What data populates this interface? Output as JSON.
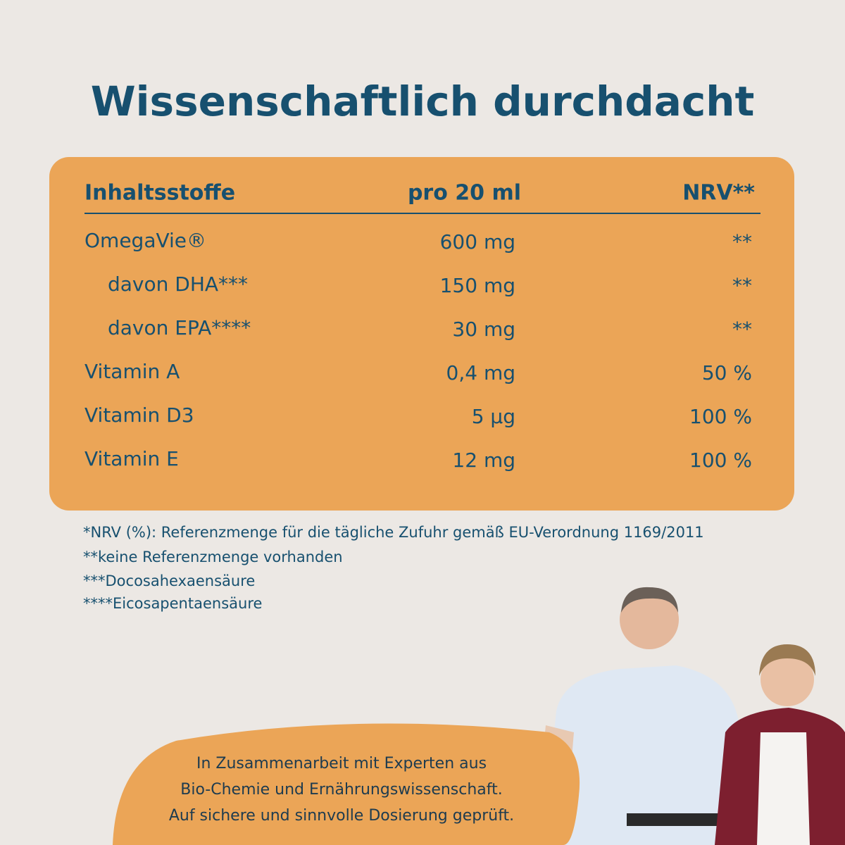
{
  "header": {
    "title": "Wissenschaftlich durchdacht"
  },
  "table": {
    "columns": [
      "Inhaltsstoffe",
      "pro 20 ml",
      "NRV**"
    ],
    "rows": [
      [
        "OmegaVie®",
        "600 mg",
        "**"
      ],
      [
        "davon DHA***",
        "150 mg",
        "**"
      ],
      [
        "davon EPA****",
        "30 mg",
        "**"
      ],
      [
        "Vitamin A",
        "0,4 mg",
        "50 %"
      ],
      [
        "Vitamin D3",
        "5 µg",
        "100 %"
      ],
      [
        "Vitamin E",
        "12 mg",
        "100 %"
      ]
    ]
  },
  "footnotes": [
    "*NRV (%): Referenzmenge für die tägliche Zufuhr gemäß EU-Verordnung 1169/2011",
    "**keine Referenzmenge vorhanden",
    "***Docosahexaensäure",
    "****Eicosapentaensäure"
  ],
  "callout": {
    "lines": [
      "In Zusammenarbeit mit Experten aus",
      "Bio-Chemie und Ernährungswissenschaft.",
      "Auf sichere und sinnvolle Dosierung geprüft."
    ]
  }
}
